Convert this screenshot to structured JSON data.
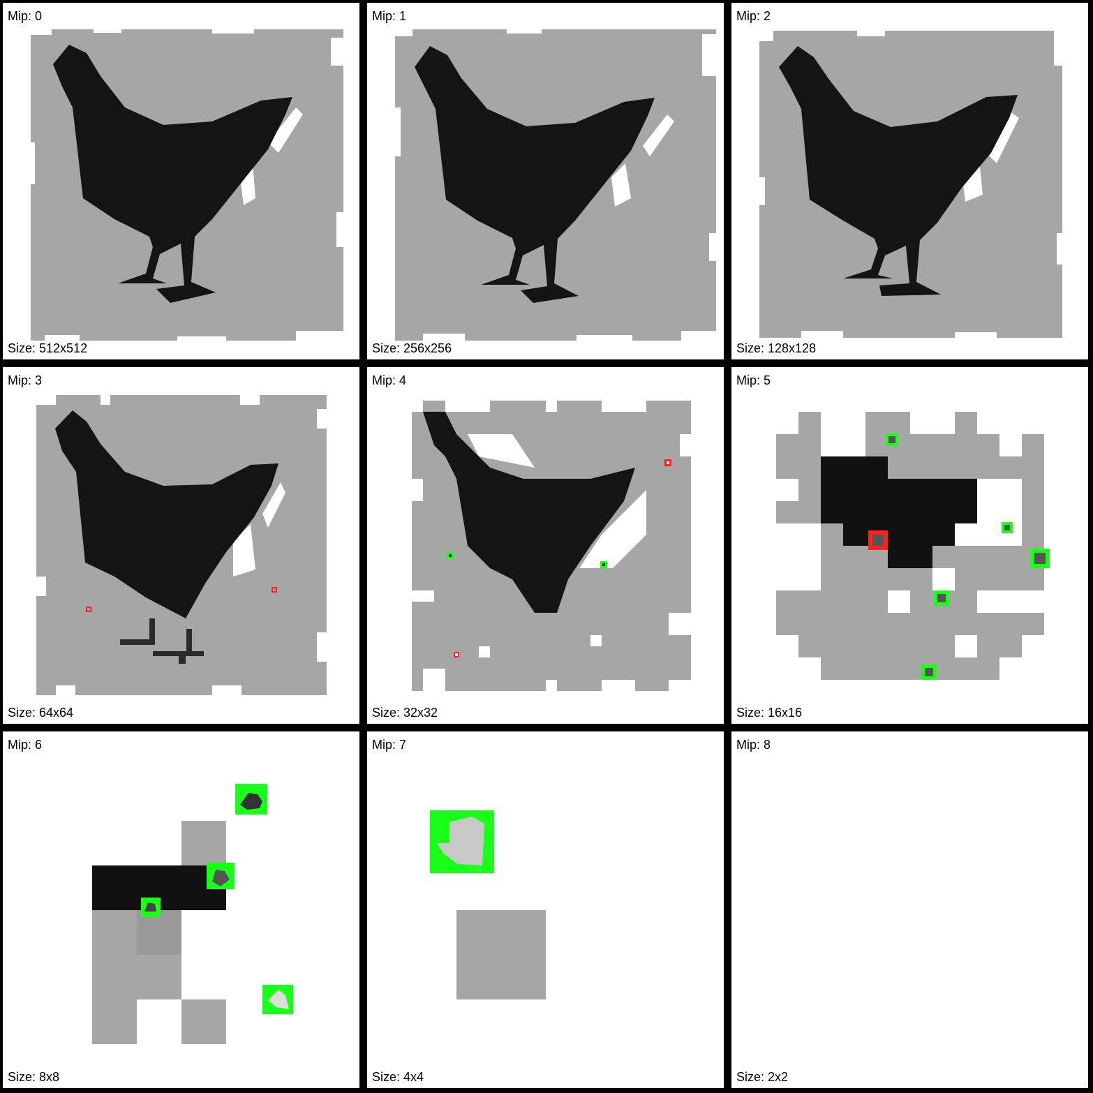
{
  "colors": {
    "grid_background": "#000000",
    "cell_background": "#ffffff",
    "noise_gray": "#a6a6a6",
    "silhouette": "#111111",
    "marker_green": "#1aff1a",
    "marker_red": "#ff2020"
  },
  "cells": [
    {
      "mip_label": "Mip: 0",
      "size_label": "Size: 512x512"
    },
    {
      "mip_label": "Mip: 1",
      "size_label": "Size: 256x256"
    },
    {
      "mip_label": "Mip: 2",
      "size_label": "Size: 128x128"
    },
    {
      "mip_label": "Mip: 3",
      "size_label": "Size: 64x64"
    },
    {
      "mip_label": "Mip: 4",
      "size_label": "Size: 32x32"
    },
    {
      "mip_label": "Mip: 5",
      "size_label": "Size: 16x16"
    },
    {
      "mip_label": "Mip: 6",
      "size_label": "Size: 8x8"
    },
    {
      "mip_label": "Mip: 7",
      "size_label": "Size: 4x4"
    },
    {
      "mip_label": "Mip: 8",
      "size_label": "Size: 2x2"
    }
  ]
}
